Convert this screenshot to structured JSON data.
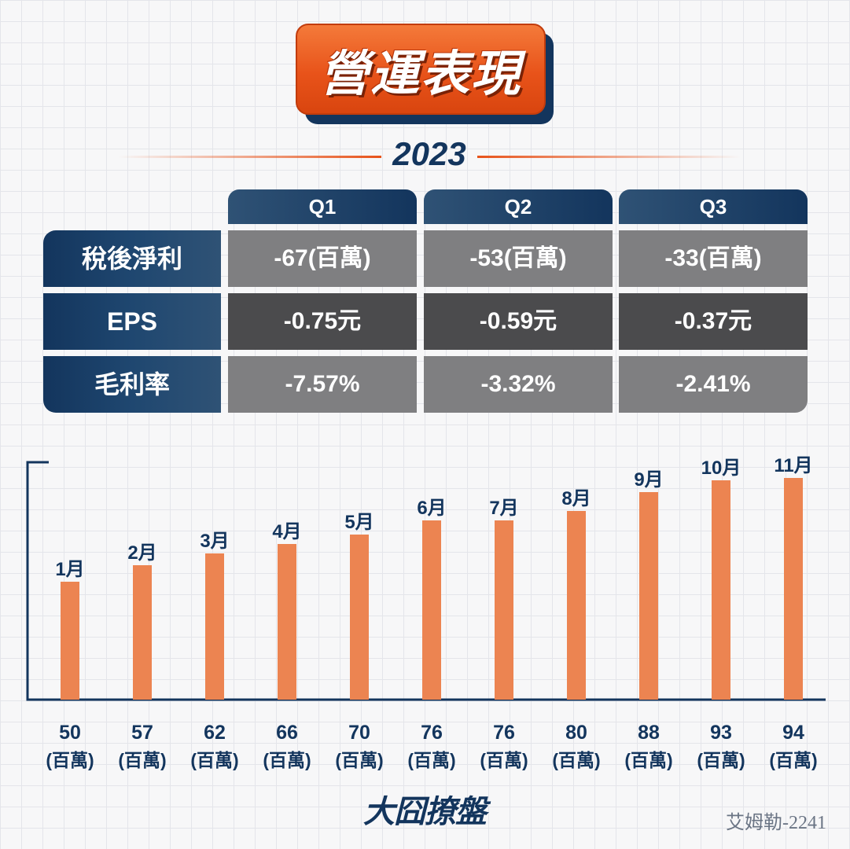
{
  "title": "營運表現",
  "year": "2023",
  "table": {
    "quarters": [
      "Q1",
      "Q2",
      "Q3"
    ],
    "rows": [
      {
        "label": "稅後淨利",
        "values": [
          "-67(百萬)",
          "-53(百萬)",
          "-33(百萬)"
        ],
        "shade": "light"
      },
      {
        "label": "EPS",
        "values": [
          "-0.75元",
          "-0.59元",
          "-0.37元"
        ],
        "shade": "dark"
      },
      {
        "label": "毛利率",
        "values": [
          "-7.57%",
          "-3.32%",
          "-2.41%"
        ],
        "shade": "light"
      }
    ]
  },
  "chart_data": {
    "type": "bar",
    "categories": [
      "1月",
      "2月",
      "3月",
      "4月",
      "5月",
      "6月",
      "7月",
      "8月",
      "9月",
      "10月",
      "11月"
    ],
    "values": [
      50,
      57,
      62,
      66,
      70,
      76,
      76,
      80,
      88,
      93,
      94
    ],
    "unit_label": "(百萬)",
    "bar_color": "#ec8451",
    "axis_color": "#13355d",
    "label_color": "#13355d"
  },
  "brand": "大囧撩盤",
  "credit": "艾姆勒-2241"
}
